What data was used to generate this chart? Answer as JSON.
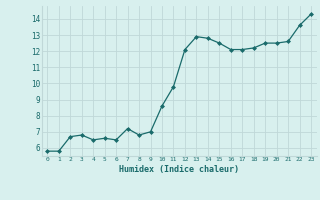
{
  "x": [
    0,
    1,
    2,
    3,
    4,
    5,
    6,
    7,
    8,
    9,
    10,
    11,
    12,
    13,
    14,
    15,
    16,
    17,
    18,
    19,
    20,
    21,
    22,
    23
  ],
  "y": [
    5.8,
    5.8,
    6.7,
    6.8,
    6.5,
    6.6,
    6.5,
    7.2,
    6.8,
    7.0,
    8.6,
    9.8,
    12.1,
    12.9,
    12.8,
    12.5,
    12.1,
    12.1,
    12.2,
    12.5,
    12.5,
    12.6,
    13.6,
    14.3
  ],
  "xlabel": "Humidex (Indice chaleur)",
  "xlim": [
    -0.5,
    23.5
  ],
  "ylim": [
    5.5,
    14.8
  ],
  "yticks": [
    6,
    7,
    8,
    9,
    10,
    11,
    12,
    13,
    14
  ],
  "xticks": [
    0,
    1,
    2,
    3,
    4,
    5,
    6,
    7,
    8,
    9,
    10,
    11,
    12,
    13,
    14,
    15,
    16,
    17,
    18,
    19,
    20,
    21,
    22,
    23
  ],
  "line_color": "#1a6b6b",
  "marker_color": "#1a6b6b",
  "bg_color": "#d8f0ee",
  "grid_color": "#c0d8d8",
  "tick_label_color": "#1a6b6b",
  "xlabel_color": "#1a6b6b"
}
